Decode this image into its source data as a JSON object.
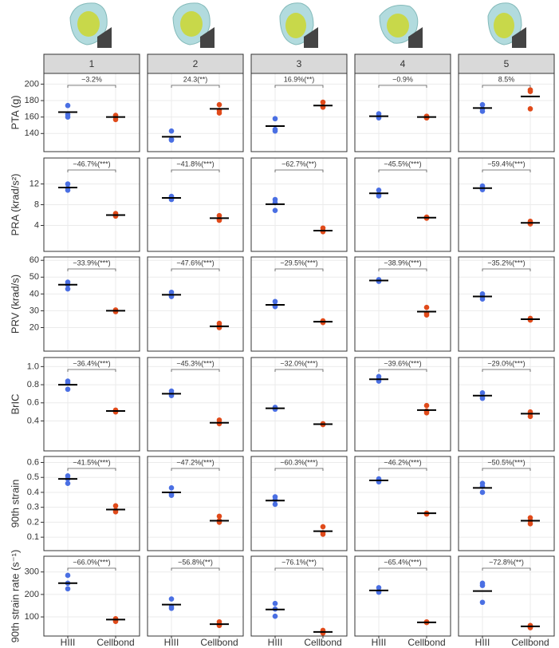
{
  "facets": [
    "1",
    "2",
    "3",
    "4",
    "5"
  ],
  "categories": [
    "HIII",
    "Cellbond"
  ],
  "colors": [
    "#4a6fe3",
    "#e04a1a"
  ],
  "chart_data": [
    {
      "type": "scatter",
      "ylabel": "PTA (g)",
      "ylim": [
        118,
        213
      ],
      "yticks": [
        140,
        160,
        180,
        200
      ],
      "panels": [
        {
          "annotation": "−3.2%",
          "values": [
            166,
            160
          ],
          "points": [
            [
              174,
              163,
              160
            ],
            [
              162,
              160,
              157
            ]
          ]
        },
        {
          "annotation": "24.3(**)",
          "values": [
            136,
            170
          ],
          "points": [
            [
              143,
              133,
              132
            ],
            [
              175,
              168,
              165
            ]
          ]
        },
        {
          "annotation": "16.9%(**)",
          "values": [
            149,
            174
          ],
          "points": [
            [
              158,
              145,
              143
            ],
            [
              178,
              173,
              172
            ]
          ]
        },
        {
          "annotation": "−0.9%",
          "values": [
            161,
            160
          ],
          "points": [
            [
              164,
              161,
              159
            ],
            [
              161,
              159,
              159
            ]
          ]
        },
        {
          "annotation": "8.5%",
          "values": [
            171,
            185
          ],
          "points": [
            [
              175,
              170,
              167
            ],
            [
              193,
              191,
              170
            ]
          ]
        }
      ]
    },
    {
      "type": "scatter",
      "ylabel": "PRA (krad/s²)",
      "ylim": [
        -1,
        17
      ],
      "yticks": [
        4,
        8,
        12
      ],
      "panels": [
        {
          "annotation": "−46.7%(***)",
          "values": [
            11.3,
            6.0
          ],
          "points": [
            [
              12.0,
              11.2,
              10.8
            ],
            [
              6.3,
              6.0,
              5.8
            ]
          ]
        },
        {
          "annotation": "−41.8%(***)",
          "values": [
            9.3,
            5.4
          ],
          "points": [
            [
              9.6,
              9.2,
              9.0
            ],
            [
              5.9,
              5.2,
              5.0
            ]
          ]
        },
        {
          "annotation": "−62.7%(**)",
          "values": [
            8.1,
            3.0
          ],
          "points": [
            [
              9.0,
              8.4,
              6.9
            ],
            [
              3.5,
              3.0,
              2.8
            ]
          ]
        },
        {
          "annotation": "−45.5%(***)",
          "values": [
            10.2,
            5.5
          ],
          "points": [
            [
              10.8,
              10.0,
              9.7
            ],
            [
              5.6,
              5.5,
              5.4
            ]
          ]
        },
        {
          "annotation": "−59.4%(***)",
          "values": [
            11.2,
            4.5
          ],
          "points": [
            [
              11.6,
              11.1,
              10.9
            ],
            [
              4.8,
              4.4,
              4.3
            ]
          ]
        }
      ]
    },
    {
      "type": "scatter",
      "ylabel": "PRV (krad/s)",
      "ylim": [
        6,
        62
      ],
      "yticks": [
        20,
        30,
        40,
        50,
        60
      ],
      "panels": [
        {
          "annotation": "−33.9%(***)",
          "values": [
            45.5,
            30
          ],
          "points": [
            [
              47,
              45.5,
              43
            ],
            [
              30.5,
              30,
              29.5
            ]
          ]
        },
        {
          "annotation": "−47.6%(***)",
          "values": [
            39.5,
            20.8
          ],
          "points": [
            [
              41,
              39,
              38.5
            ],
            [
              22.5,
              21,
              20
            ]
          ]
        },
        {
          "annotation": "−29.5%(***)",
          "values": [
            33.5,
            23.5
          ],
          "points": [
            [
              35.5,
              33,
              32.5
            ],
            [
              24,
              23.5,
              23
            ]
          ]
        },
        {
          "annotation": "−38.9%(***)",
          "values": [
            48,
            29.5
          ],
          "points": [
            [
              48.5,
              48,
              47.5
            ],
            [
              32,
              28.5,
              27.5
            ]
          ]
        },
        {
          "annotation": "−35.2%(***)",
          "values": [
            38.5,
            25
          ],
          "points": [
            [
              40,
              38.5,
              37
            ],
            [
              25.5,
              25,
              24.5
            ]
          ]
        }
      ]
    },
    {
      "type": "scatter",
      "ylabel": "BrIC",
      "ylim": [
        0.07,
        1.1
      ],
      "yticks": [
        0.4,
        0.6,
        0.8,
        {
          "value": 1,
          "label": "1.0"
        }
      ],
      "panels": [
        {
          "annotation": "−36.4%(***)",
          "values": [
            0.8,
            0.51
          ],
          "points": [
            [
              0.84,
              0.82,
              0.75
            ],
            [
              0.52,
              0.51,
              0.5
            ]
          ]
        },
        {
          "annotation": "−45.3%(***)",
          "values": [
            0.7,
            0.38
          ],
          "points": [
            [
              0.73,
              0.7,
              0.68
            ],
            [
              0.41,
              0.38,
              0.37
            ]
          ]
        },
        {
          "annotation": "−32.0%(***)",
          "values": [
            0.54,
            0.365
          ],
          "points": [
            [
              0.55,
              0.54,
              0.53
            ],
            [
              0.37,
              0.365,
              0.36
            ]
          ]
        },
        {
          "annotation": "−39.6%(***)",
          "values": [
            0.86,
            0.52
          ],
          "points": [
            [
              0.89,
              0.86,
              0.84
            ],
            [
              0.57,
              0.51,
              0.49
            ]
          ]
        },
        {
          "annotation": "−29.0%(***)",
          "values": [
            0.68,
            0.48
          ],
          "points": [
            [
              0.71,
              0.67,
              0.65
            ],
            [
              0.5,
              0.48,
              0.45
            ]
          ]
        }
      ]
    },
    {
      "type": "scatter",
      "ylabel": "90th strain",
      "ylim": [
        0.01,
        0.64
      ],
      "yticks": [
        0.1,
        0.2,
        0.3,
        0.4,
        0.5,
        0.6
      ],
      "panels": [
        {
          "annotation": "−41.5%(***)",
          "values": [
            0.49,
            0.285
          ],
          "points": [
            [
              0.51,
              0.49,
              0.46
            ],
            [
              0.31,
              0.28,
              0.27
            ]
          ]
        },
        {
          "annotation": "−47.2%(***)",
          "values": [
            0.4,
            0.21
          ],
          "points": [
            [
              0.43,
              0.39,
              0.38
            ],
            [
              0.24,
              0.21,
              0.2
            ]
          ]
        },
        {
          "annotation": "−60.3%(***)",
          "values": [
            0.345,
            0.14
          ],
          "points": [
            [
              0.37,
              0.35,
              0.32
            ],
            [
              0.17,
              0.13,
              0.12
            ]
          ]
        },
        {
          "annotation": "−46.2%(***)",
          "values": [
            0.48,
            0.26
          ],
          "points": [
            [
              0.49,
              0.48,
              0.47
            ],
            [
              0.26,
              0.26,
              0.255
            ]
          ]
        },
        {
          "annotation": "−50.5%(***)",
          "values": [
            0.43,
            0.21
          ],
          "points": [
            [
              0.46,
              0.44,
              0.4
            ],
            [
              0.23,
              0.21,
              0.19
            ]
          ]
        }
      ]
    },
    {
      "type": "scatter",
      "ylabel": "90th strain rate (s⁻¹)",
      "ylim": [
        15,
        370
      ],
      "yticks": [
        100,
        200,
        300
      ],
      "panels": [
        {
          "annotation": "−66.0%(***)",
          "values": [
            250,
            88
          ],
          "points": [
            [
              285,
              250,
              225
            ],
            [
              92,
              85,
              80
            ]
          ]
        },
        {
          "annotation": "−56.8%(**)",
          "values": [
            155,
            68
          ],
          "points": [
            [
              180,
              145,
              138
            ],
            [
              78,
              68,
              62
            ]
          ]
        },
        {
          "annotation": "−76.1%(**)",
          "values": [
            133,
            33
          ],
          "points": [
            [
              160,
              135,
              103
            ],
            [
              40,
              32,
              28
            ]
          ]
        },
        {
          "annotation": "−65.4%(***)",
          "values": [
            218,
            76
          ],
          "points": [
            [
              230,
              215,
              210
            ],
            [
              78,
              76,
              75
            ]
          ]
        },
        {
          "annotation": "−72.8%(**)",
          "values": [
            215,
            58
          ],
          "points": [
            [
              250,
              240,
              165
            ],
            [
              62,
              55,
              52
            ]
          ]
        }
      ]
    }
  ]
}
